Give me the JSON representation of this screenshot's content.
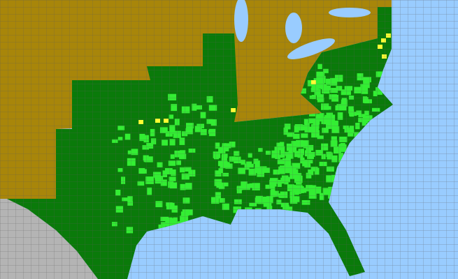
{
  "map": {
    "colors": {
      "water": "#99ccff",
      "outside_region": "#b4b4b4",
      "not_present": "#a8860a",
      "state_present": "#0a7a0a",
      "county_present": "#33ee33",
      "county_uncertain": "#ffff33",
      "county_lines": "#6a6a6a"
    }
  }
}
